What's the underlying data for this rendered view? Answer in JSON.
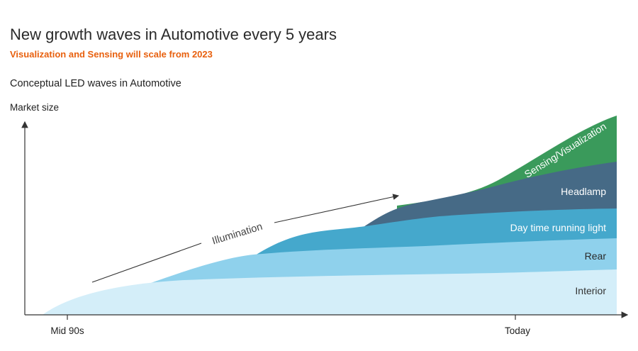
{
  "header": {
    "title": "New growth waves in Automotive every 5 years",
    "subtitle": "Visualization and Sensing will scale from 2023",
    "section_title": "Conceptual LED waves in Automotive"
  },
  "colors": {
    "accent": "#e8600e",
    "interior": "#d4eef9",
    "rear": "#8fd1ec",
    "drl": "#45a8cc",
    "headlamp": "#466a86",
    "sensing": "#3a9a5b"
  },
  "chart_data": {
    "type": "area",
    "stacked": true,
    "ylabel": "Market size",
    "xlabel": "",
    "x_ticks": [
      "Mid 90s",
      "Today"
    ],
    "annotation": "Illumination",
    "grid": false,
    "series": [
      {
        "name": "Interior",
        "color": "#d4eef9",
        "label_color": "#333333"
      },
      {
        "name": "Rear",
        "color": "#8fd1ec",
        "label_color": "#2a2a2a"
      },
      {
        "name": "Day time running light",
        "color": "#45a8cc",
        "label_color": "#ffffff"
      },
      {
        "name": "Headlamp",
        "color": "#466a86",
        "label_color": "#ffffff"
      },
      {
        "name": "Sensing/Visualization",
        "color": "#3a9a5b",
        "label_color": "#ffffff"
      }
    ]
  }
}
